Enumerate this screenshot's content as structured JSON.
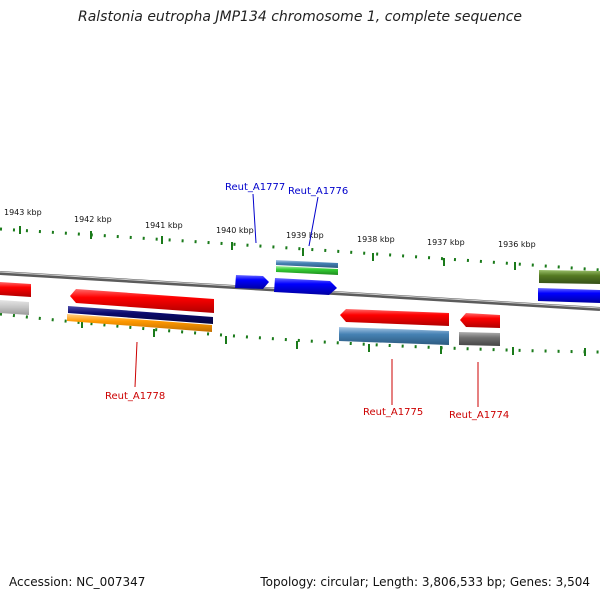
{
  "title": "Ralstonia eutropha JMP134 chromosome 1, complete sequence",
  "footer": {
    "accession": "Accession: NC_007347",
    "summary": "Topology: circular; Length: 3,806,533 bp; Genes: 3,504"
  },
  "scale_labels": [
    "1943 kbp",
    "1942 kbp",
    "1941 kbp",
    "1940 kbp",
    "1939 kbp",
    "1938 kbp",
    "1937 kbp",
    "1936 kbp"
  ],
  "gene_labels": [
    {
      "name": "Reut_A1777",
      "color": "#0000cc"
    },
    {
      "name": "Reut_A1776",
      "color": "#0000cc"
    },
    {
      "name": "Reut_A1778",
      "color": "#cc0000"
    },
    {
      "name": "Reut_A1775",
      "color": "#cc0000"
    },
    {
      "name": "Reut_A1774",
      "color": "#cc0000"
    }
  ],
  "colors": {
    "red": "#ff0000",
    "blue": "#0000ff",
    "green": "#33cc33",
    "steel": "#4682b4",
    "navy": "#0a0a6e",
    "orange": "#ff9900",
    "olive": "#557a22",
    "grey": "#707070",
    "tick": "#1a7a1a"
  }
}
